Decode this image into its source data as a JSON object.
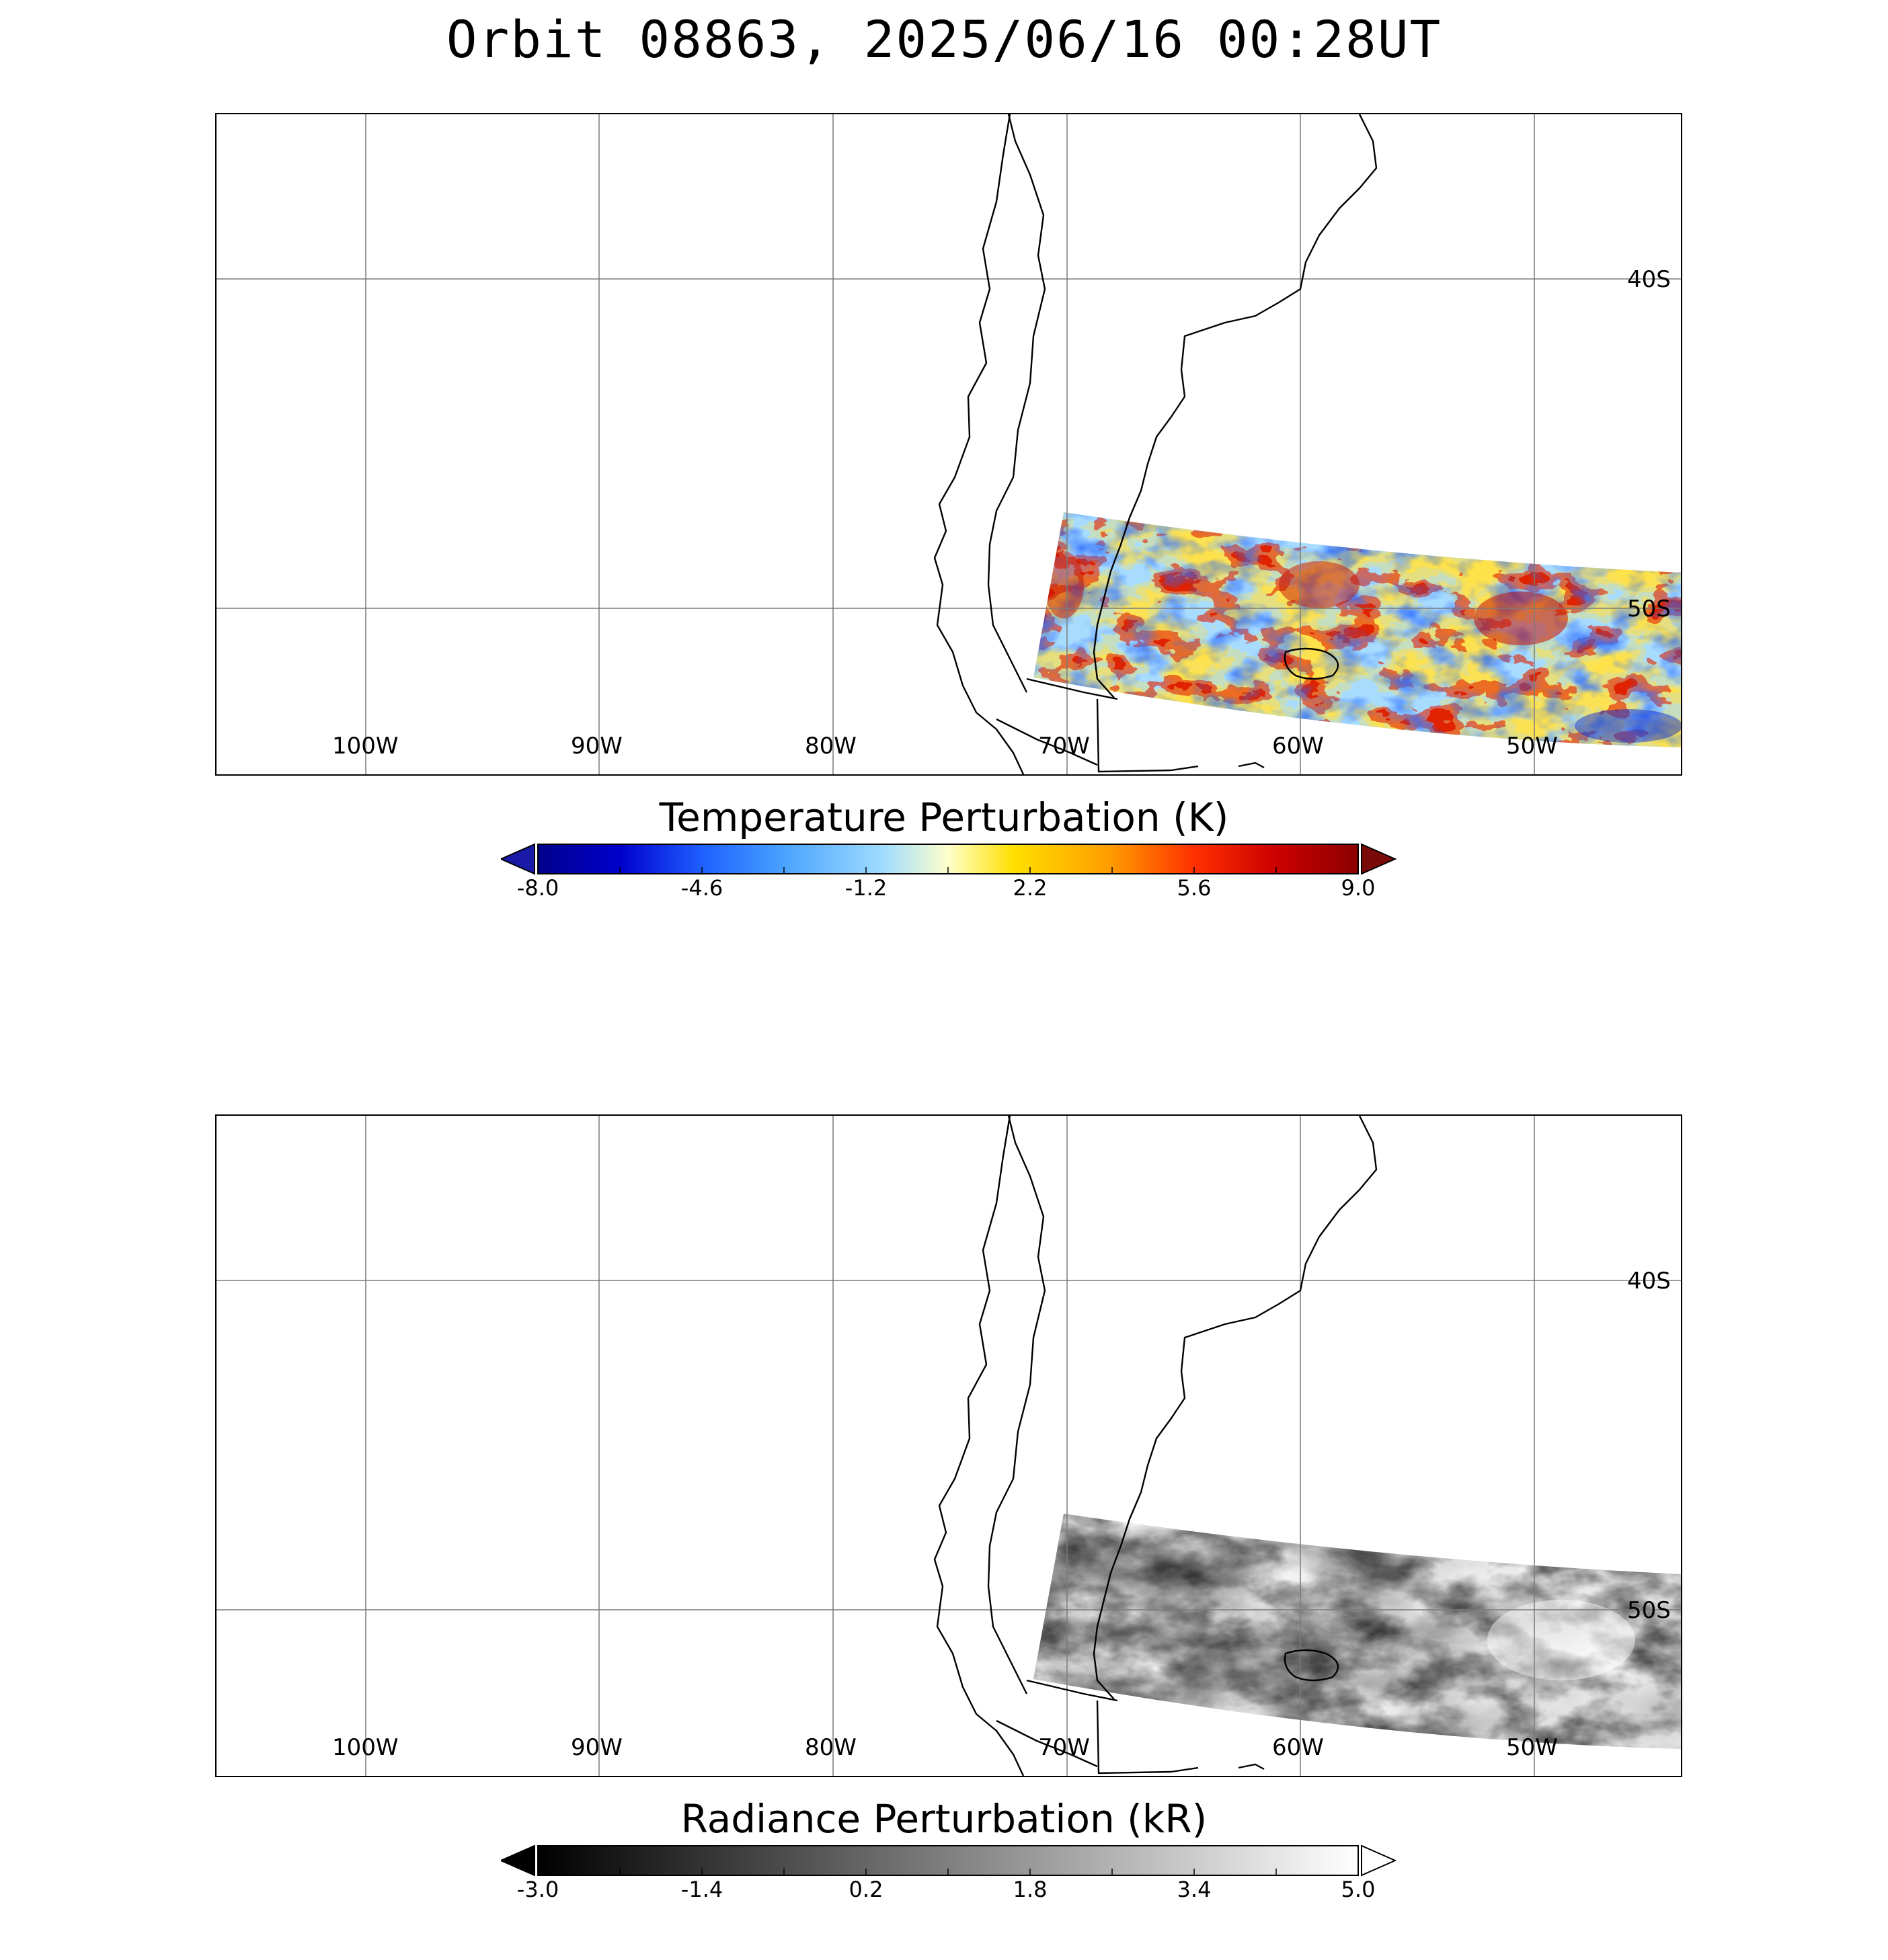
{
  "title": "Orbit 08863, 2025/06/16 00:28UT",
  "panels": [
    {
      "lon_labels": [
        "100W",
        "90W",
        "80W",
        "70W",
        "60W",
        "50W"
      ],
      "lat_labels": [
        "40S",
        "50S"
      ],
      "colorbar": {
        "title": "Temperature Perturbation (K)",
        "ticks": [
          "-8.0",
          "-4.6",
          "-1.2",
          "2.2",
          "5.6",
          "9.0"
        ],
        "range": [
          -8.0,
          9.0
        ],
        "colormap": [
          "#00008b",
          "#0000cd",
          "#1e5fff",
          "#4aa3ff",
          "#9fdcff",
          "#ffffcc",
          "#ffe000",
          "#ff9a00",
          "#ff3000",
          "#cc0000",
          "#8b0000"
        ],
        "low_extend_color": "#1a1aa8",
        "high_extend_color": "#7a0a0a"
      }
    },
    {
      "lon_labels": [
        "100W",
        "90W",
        "80W",
        "70W",
        "60W",
        "50W"
      ],
      "lat_labels": [
        "40S",
        "50S"
      ],
      "colorbar": {
        "title": "Radiance Perturbation (kR)",
        "ticks": [
          "-3.0",
          "-1.4",
          "0.2",
          "1.8",
          "3.4",
          "5.0"
        ],
        "range": [
          -3.0,
          5.0
        ],
        "colormap": [
          "#000000",
          "#ffffff"
        ],
        "low_extend_color": "#000000",
        "high_extend_color": "#ffffff"
      }
    }
  ]
}
